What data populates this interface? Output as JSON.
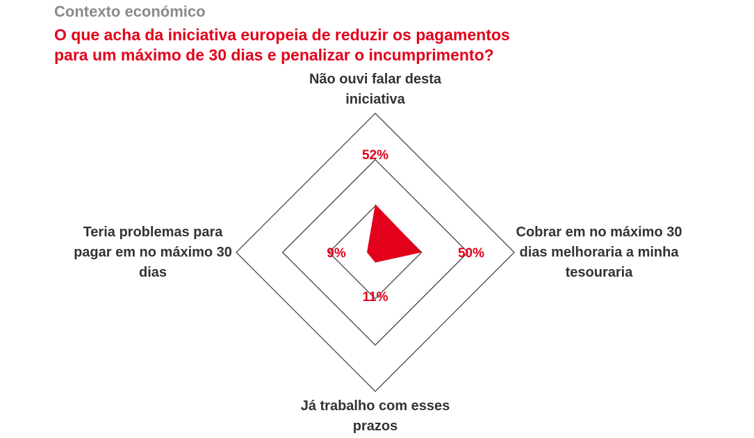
{
  "header": {
    "kicker": "Contexto económico",
    "title_line1": "O que acha da iniciativa europeia de reduzir os pagamentos",
    "title_line2": "para um máximo de 30 dias e penalizar o incumprimento?"
  },
  "chart_data": {
    "type": "radar",
    "title": "O que acha da iniciativa europeia de reduzir os pagamentos para um máximo de 30 dias e penalizar o incumprimento?",
    "unit": "%",
    "axis_max": 150,
    "rings": [
      50,
      100,
      150
    ],
    "categories": [
      {
        "label_lines": [
          "Não ouvi falar desta",
          "iniciativa"
        ],
        "value": 52,
        "value_label": "52%"
      },
      {
        "label_lines": [
          "Cobrar em no máximo 30",
          "dias melhoraria a minha",
          "tesouraria"
        ],
        "value": 50,
        "value_label": "50%"
      },
      {
        "label_lines": [
          "Já trabalho com esses",
          "prazos"
        ],
        "value": 11,
        "value_label": "11%"
      },
      {
        "label_lines": [
          "Teria problemas para",
          "pagar em no máximo 30",
          "dias"
        ],
        "value": 9,
        "value_label": "9%"
      }
    ],
    "colors": {
      "fill": "#e2001a",
      "grid": "#444444",
      "labels": "#333333",
      "values": "#e2001a"
    }
  }
}
